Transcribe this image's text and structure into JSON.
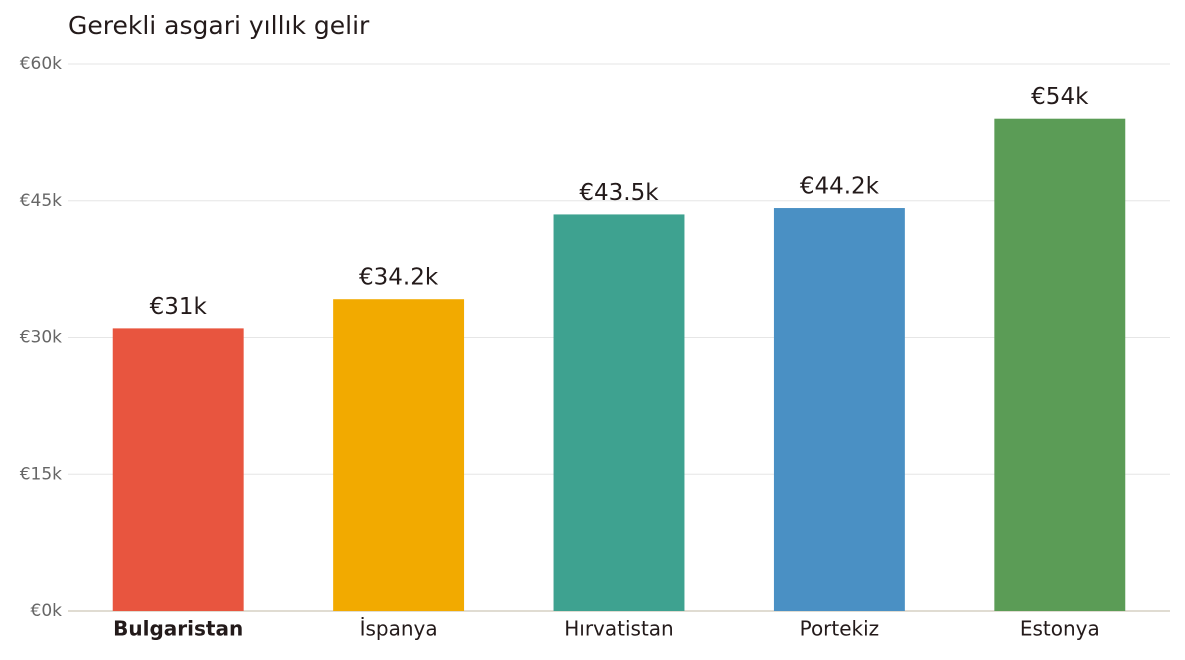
{
  "chart_data": {
    "type": "bar",
    "title": "Gerekli asgari yıllık gelir",
    "categories": [
      "Bulgaristan",
      "İspanya",
      "Hırvatistan",
      "Portekiz",
      "Estonya"
    ],
    "values": [
      31000,
      34200,
      43500,
      44200,
      54000
    ],
    "value_labels": [
      "€31k",
      "€34.2k",
      "€43.5k",
      "€44.2k",
      "€54k"
    ],
    "colors": [
      "#e8553f",
      "#f2aa00",
      "#3ea290",
      "#4a90c4",
      "#5b9c56"
    ],
    "highlight": "Bulgaristan",
    "ylim": [
      0,
      60000
    ],
    "yticks": [
      {
        "value": 0,
        "label": "€0k"
      },
      {
        "value": 15000,
        "label": "€15k"
      },
      {
        "value": 30000,
        "label": "€30k"
      },
      {
        "value": 45000,
        "label": "€45k"
      },
      {
        "value": 60000,
        "label": "€60k"
      }
    ],
    "grid": true
  }
}
